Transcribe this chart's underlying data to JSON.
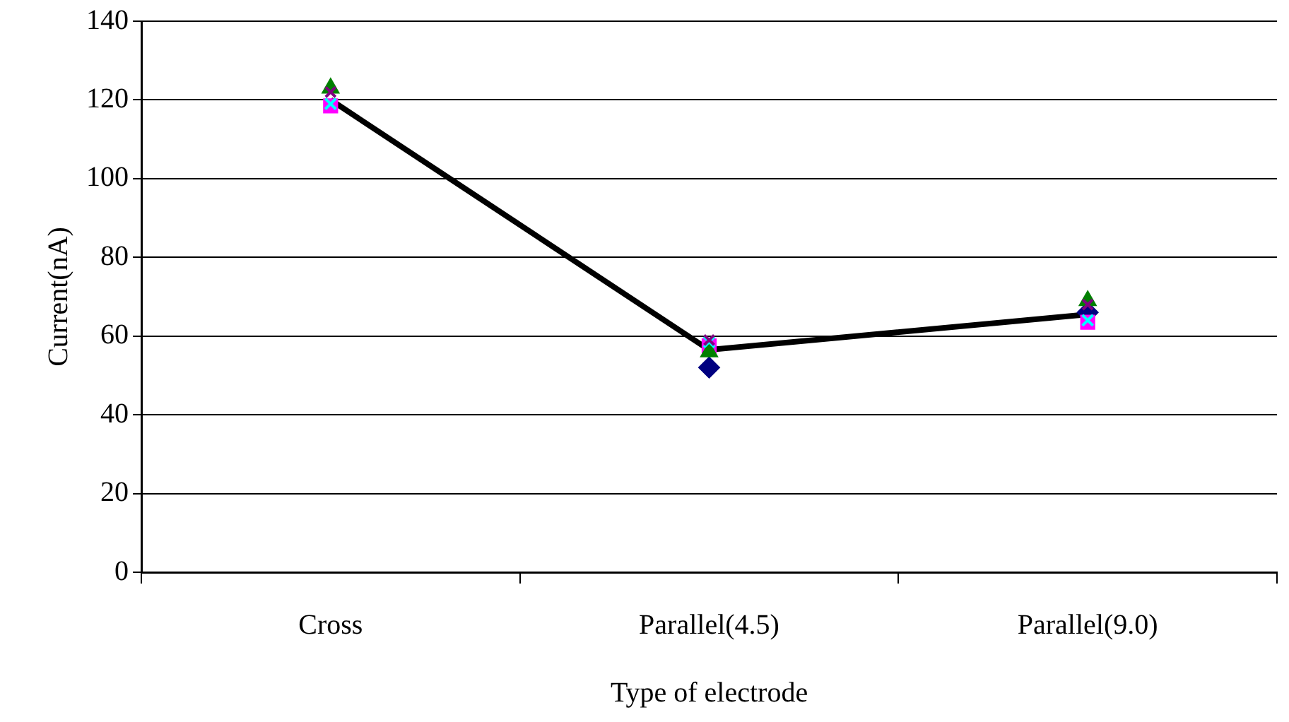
{
  "chart_data": {
    "type": "scatter",
    "xlabel": "Type of electrode",
    "ylabel": "Current(nA)",
    "categories": [
      "Cross",
      "Parallel(4.5)",
      "Parallel(9.0)"
    ],
    "ylim": [
      0,
      140
    ],
    "yticks": [
      0,
      20,
      40,
      60,
      80,
      100,
      120,
      140
    ],
    "grid": "y",
    "legend": false,
    "series": [
      {
        "marker": "diamond",
        "color": "#000080",
        "values": [
          null,
          52,
          66
        ]
      },
      {
        "marker": "square",
        "color": "#ff00ff",
        "values": [
          118.5,
          57.5,
          63.5
        ]
      },
      {
        "marker": "triangle",
        "color": "#008000",
        "values": [
          123,
          56,
          69
        ]
      },
      {
        "marker": "cross",
        "color": "#00ffff",
        "values": [
          119,
          58.5,
          64
        ]
      },
      {
        "marker": "cross",
        "color": "#800080",
        "values": [
          122,
          59,
          68
        ]
      },
      {
        "type": "line",
        "marker": "none",
        "line_style": "solid",
        "color": "#000000",
        "values": [
          120,
          56.5,
          65.5
        ]
      }
    ]
  }
}
